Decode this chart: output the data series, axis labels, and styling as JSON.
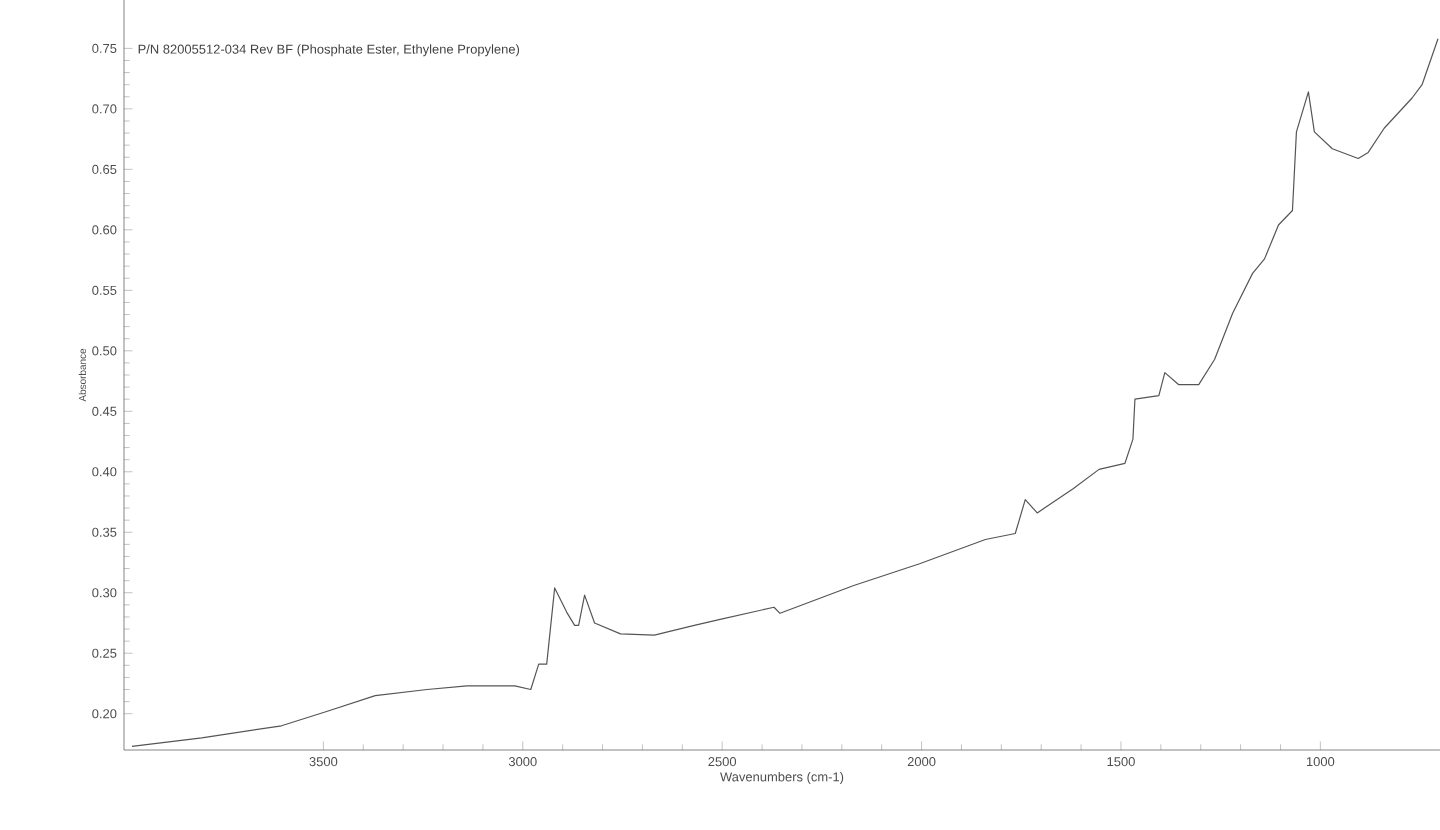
{
  "chart_data": {
    "type": "line",
    "title": "P/N 82005512-034 Rev BF (Phosphate Ester, Ethylene Propylene)",
    "xlabel": "Wavenumbers (cm-1)",
    "ylabel": "Absorbance",
    "xlim": [
      4000,
      700
    ],
    "ylim": [
      0.17,
      0.79
    ],
    "xticks": [
      3500,
      3000,
      2500,
      2000,
      1500,
      1000
    ],
    "yticks": [
      {
        "value": 0.2,
        "label": "0.20"
      },
      {
        "value": 0.25,
        "label": "0.25"
      },
      {
        "value": 0.3,
        "label": "0.30"
      },
      {
        "value": 0.35,
        "label": "0.35"
      },
      {
        "value": 0.4,
        "label": "0.40"
      },
      {
        "value": 0.45,
        "label": "0.45"
      },
      {
        "value": 0.5,
        "label": "0.50"
      },
      {
        "value": 0.55,
        "label": "0.55"
      },
      {
        "value": 0.6,
        "label": "0.60"
      },
      {
        "value": 0.65,
        "label": "0.65"
      },
      {
        "value": 0.7,
        "label": "0.70"
      },
      {
        "value": 0.75,
        "label": "0.75"
      }
    ],
    "marker": "none",
    "line_style": "solid",
    "series": [
      {
        "color": "#555555",
        "x": [
          3980,
          3805,
          3605,
          3490,
          3370,
          3240,
          3140,
          3020,
          2980,
          2960,
          2940,
          2920,
          2890,
          2870,
          2860,
          2845,
          2820,
          2755,
          2670,
          2570,
          2505,
          2370,
          2355,
          2170,
          2005,
          1840,
          1765,
          1740,
          1710,
          1620,
          1555,
          1490,
          1470,
          1465,
          1405,
          1390,
          1355,
          1305,
          1265,
          1220,
          1170,
          1140,
          1105,
          1070,
          1060,
          1030,
          1015,
          970,
          905,
          880,
          840,
          770,
          745,
          705
        ],
        "values": [
          0.173,
          0.18,
          0.19,
          0.202,
          0.215,
          0.22,
          0.223,
          0.223,
          0.22,
          0.241,
          0.241,
          0.304,
          0.284,
          0.273,
          0.273,
          0.298,
          0.275,
          0.266,
          0.265,
          0.273,
          0.278,
          0.288,
          0.283,
          0.306,
          0.324,
          0.344,
          0.349,
          0.377,
          0.366,
          0.386,
          0.402,
          0.407,
          0.427,
          0.46,
          0.463,
          0.482,
          0.472,
          0.472,
          0.493,
          0.531,
          0.564,
          0.576,
          0.604,
          0.616,
          0.681,
          0.714,
          0.681,
          0.667,
          0.659,
          0.664,
          0.684,
          0.709,
          0.72,
          0.758
        ]
      }
    ]
  }
}
